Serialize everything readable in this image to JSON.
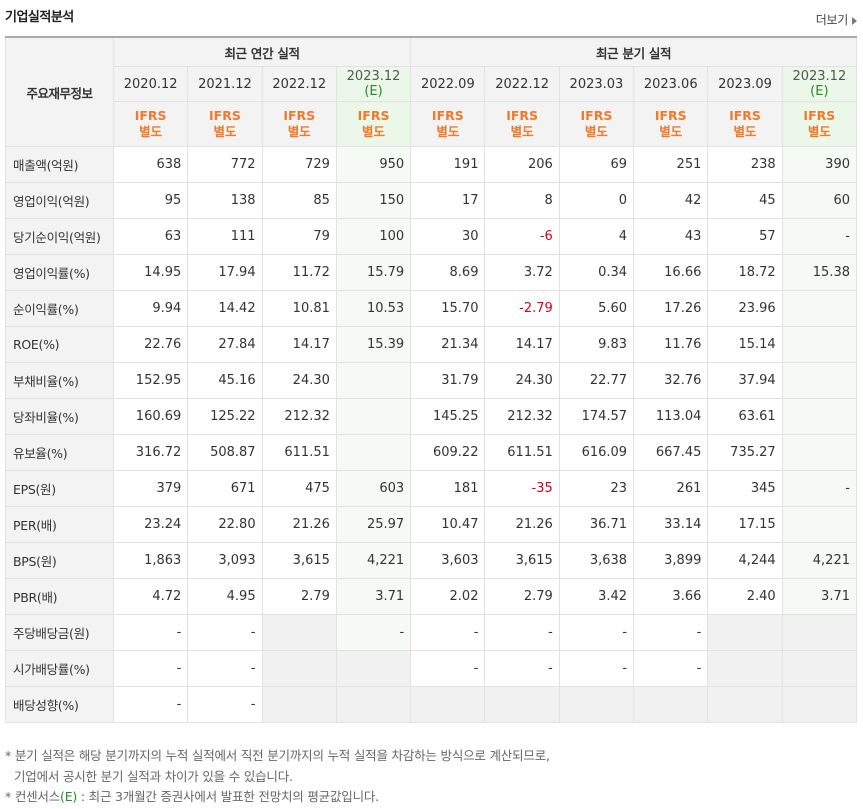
{
  "title": "기업실적분석",
  "more_label": "더보기",
  "header": {
    "row_label": "주요재무정보",
    "groups": [
      {
        "label": "최근 연간 실적"
      },
      {
        "label": "최근 분기 실적"
      }
    ],
    "periods": [
      {
        "label": "2020.12",
        "est": false
      },
      {
        "label": "2021.12",
        "est": false
      },
      {
        "label": "2022.12",
        "est": false
      },
      {
        "label": "2023.12",
        "est_label": "(E)",
        "est": true
      },
      {
        "label": "2022.09",
        "est": false
      },
      {
        "label": "2022.12",
        "est": false
      },
      {
        "label": "2023.03",
        "est": false
      },
      {
        "label": "2023.06",
        "est": false
      },
      {
        "label": "2023.09",
        "est": false
      },
      {
        "label": "2023.12",
        "est_label": "(E)",
        "est": true
      }
    ],
    "ifrs_top": "IFRS",
    "ifrs_bottom": "별도"
  },
  "rows": [
    {
      "label": "매출액(억원)",
      "values": [
        "638",
        "772",
        "729",
        "950",
        "191",
        "206",
        "69",
        "251",
        "238",
        "390"
      ]
    },
    {
      "label": "영업이익(억원)",
      "values": [
        "95",
        "138",
        "85",
        "150",
        "17",
        "8",
        "0",
        "42",
        "45",
        "60"
      ]
    },
    {
      "label": "당기순이익(억원)",
      "values": [
        "63",
        "111",
        "79",
        "100",
        "30",
        "-6",
        "4",
        "43",
        "57",
        "-"
      ]
    },
    {
      "label": "영업이익률(%)",
      "values": [
        "14.95",
        "17.94",
        "11.72",
        "15.79",
        "8.69",
        "3.72",
        "0.34",
        "16.66",
        "18.72",
        "15.38"
      ]
    },
    {
      "label": "순이익률(%)",
      "values": [
        "9.94",
        "14.42",
        "10.81",
        "10.53",
        "15.70",
        "-2.79",
        "5.60",
        "17.26",
        "23.96",
        ""
      ]
    },
    {
      "label": "ROE(%)",
      "values": [
        "22.76",
        "27.84",
        "14.17",
        "15.39",
        "21.34",
        "14.17",
        "9.83",
        "11.76",
        "15.14",
        ""
      ]
    },
    {
      "label": "부채비율(%)",
      "values": [
        "152.95",
        "45.16",
        "24.30",
        "",
        "31.79",
        "24.30",
        "22.77",
        "32.76",
        "37.94",
        ""
      ]
    },
    {
      "label": "당좌비율(%)",
      "values": [
        "160.69",
        "125.22",
        "212.32",
        "",
        "145.25",
        "212.32",
        "174.57",
        "113.04",
        "63.61",
        ""
      ]
    },
    {
      "label": "유보율(%)",
      "values": [
        "316.72",
        "508.87",
        "611.51",
        "",
        "609.22",
        "611.51",
        "616.09",
        "667.45",
        "735.27",
        ""
      ]
    },
    {
      "label": "EPS(원)",
      "values": [
        "379",
        "671",
        "475",
        "603",
        "181",
        "-35",
        "23",
        "261",
        "345",
        "-"
      ]
    },
    {
      "label": "PER(배)",
      "values": [
        "23.24",
        "22.80",
        "21.26",
        "25.97",
        "10.47",
        "21.26",
        "36.71",
        "33.14",
        "17.15",
        ""
      ]
    },
    {
      "label": "BPS(원)",
      "values": [
        "1,863",
        "3,093",
        "3,615",
        "4,221",
        "3,603",
        "3,615",
        "3,638",
        "3,899",
        "4,244",
        "4,221"
      ]
    },
    {
      "label": "PBR(배)",
      "values": [
        "4.72",
        "4.95",
        "2.79",
        "3.71",
        "2.02",
        "2.79",
        "3.42",
        "3.66",
        "2.40",
        "3.71"
      ]
    },
    {
      "label": "주당배당금(원)",
      "values": [
        "-",
        "-",
        "",
        "-",
        "-",
        "-",
        "-",
        "-",
        "",
        ""
      ]
    },
    {
      "label": "시가배당률(%)",
      "values": [
        "-",
        "-",
        "",
        "",
        "-",
        "-",
        "-",
        "-",
        "",
        ""
      ]
    },
    {
      "label": "배당성향(%)",
      "values": [
        "-",
        "-",
        "",
        "",
        "",
        "",
        "",
        "",
        "",
        ""
      ]
    }
  ],
  "notes": {
    "line1": "* 분기 실적은 해당 분기까지의 누적 실적에서 직전 분기까지의 누적 실적을 차감하는 방식으로 계산되므로,",
    "line2": "기업에서 공시한 분기 실적과 차이가 있을 수 있습니다.",
    "line3_prefix": "* 컨센서스",
    "line3_e": "(E)",
    "line3_suffix": " : 최근 3개월간 증권사에서 발표한 전망치의 평균값입니다."
  }
}
